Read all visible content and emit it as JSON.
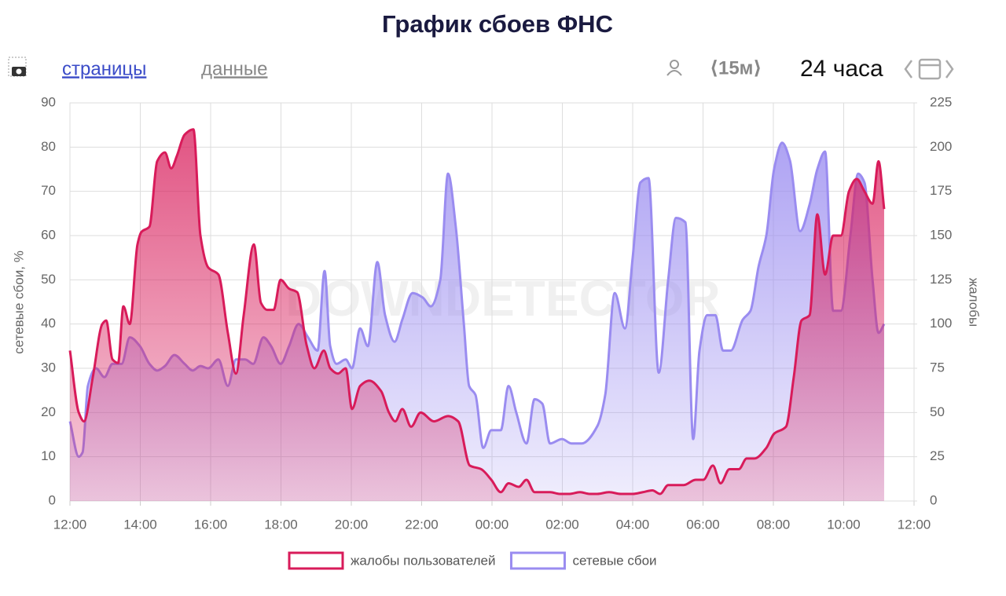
{
  "controls": {
    "tab_pages": "страницы",
    "tab_data": "данные",
    "interval": "⟨15м⟩",
    "period": "24 часа"
  },
  "chart_data": {
    "type": "area",
    "title": "График сбоев ФНС",
    "watermark": "DOWNDETECTOR",
    "ylabel": "сетевые сбои, %",
    "y2label": "жалобы",
    "xlim": [
      0,
      24
    ],
    "xticks": [
      {
        "value": 0,
        "label": "12:00"
      },
      {
        "value": 2,
        "label": "14:00"
      },
      {
        "value": 4,
        "label": "16:00"
      },
      {
        "value": 6,
        "label": "18:00"
      },
      {
        "value": 8,
        "label": "20:00"
      },
      {
        "value": 10,
        "label": "22:00"
      },
      {
        "value": 12,
        "label": "00:00"
      },
      {
        "value": 14,
        "label": "02:00"
      },
      {
        "value": 16,
        "label": "04:00"
      },
      {
        "value": 18,
        "label": "06:00"
      },
      {
        "value": 20,
        "label": "08:00"
      },
      {
        "value": 22,
        "label": "10:00"
      },
      {
        "value": 24,
        "label": "12:00"
      }
    ],
    "ylim": [
      0,
      90
    ],
    "yticks": [
      0,
      10,
      20,
      30,
      40,
      50,
      60,
      70,
      80,
      90
    ],
    "y2lim": [
      0,
      225
    ],
    "y2ticks": [
      0,
      25,
      50,
      75,
      100,
      125,
      150,
      175,
      200,
      225
    ],
    "grid": true,
    "series": [
      {
        "name": "жалобы пользователей",
        "color": "#d81b5a",
        "axis": "y2",
        "x": [
          0,
          0.25,
          0.4,
          0.65,
          0.92,
          1.03,
          1.21,
          1.37,
          1.52,
          1.7,
          1.92,
          2.03,
          2.26,
          2.48,
          2.7,
          2.88,
          3.04,
          3.26,
          3.51,
          3.71,
          3.93,
          4.22,
          4.49,
          4.72,
          4.94,
          5.23,
          5.43,
          5.61,
          5.79,
          5.99,
          6.23,
          6.46,
          6.73,
          6.95,
          7.22,
          7.4,
          7.62,
          7.84,
          8.02,
          8.25,
          8.51,
          8.85,
          9.07,
          9.25,
          9.45,
          9.7,
          9.97,
          10.35,
          10.75,
          11.04,
          11.37,
          11.69,
          11.98,
          12.25,
          12.47,
          12.76,
          12.98,
          13.21,
          13.65,
          13.92,
          14.21,
          14.5,
          14.77,
          14.99,
          15.33,
          15.66,
          16,
          16.29,
          16.56,
          16.78,
          17.01,
          17.45,
          17.79,
          18.01,
          18.28,
          18.5,
          18.75,
          19.02,
          19.24,
          19.46,
          19.8,
          20.02,
          20.36,
          20.58,
          20.8,
          21.03,
          21.25,
          21.47,
          21.7,
          21.92,
          22.15,
          22.37,
          22.59,
          22.82,
          22.99,
          23.15
        ],
        "values": [
          85,
          50,
          45,
          70,
          100,
          102,
          80,
          78,
          110,
          100,
          145,
          152,
          155,
          192,
          197,
          188,
          195,
          207,
          210,
          150,
          132,
          128,
          95,
          72,
          105,
          145,
          112,
          108,
          108,
          125,
          120,
          118,
          88,
          75,
          85,
          75,
          72,
          75,
          52,
          65,
          68,
          62,
          50,
          45,
          52,
          42,
          50,
          45,
          48,
          45,
          20,
          18,
          12,
          5,
          10,
          8,
          12,
          5,
          5,
          4,
          4,
          5,
          4,
          4,
          5,
          4,
          4,
          5,
          6,
          4,
          9,
          9,
          12,
          12,
          20,
          10,
          18,
          18,
          24,
          24,
          30,
          38,
          42,
          70,
          102,
          105,
          162,
          128,
          150,
          150,
          175,
          182,
          175,
          168,
          192,
          165
        ]
      },
      {
        "name": "сетевые сбои",
        "color": "#9a8cf0",
        "axis": "y",
        "x": [
          0,
          0.25,
          0.36,
          0.51,
          0.74,
          0.98,
          1.21,
          1.47,
          1.7,
          1.99,
          2.26,
          2.48,
          2.7,
          2.97,
          3.26,
          3.49,
          3.71,
          3.93,
          4.22,
          4.49,
          4.72,
          4.98,
          5.21,
          5.5,
          5.72,
          5.99,
          6.23,
          6.5,
          6.77,
          7.04,
          7.24,
          7.4,
          7.58,
          7.84,
          8.02,
          8.25,
          8.47,
          8.74,
          8.96,
          9.23,
          9.45,
          9.74,
          10.03,
          10.26,
          10.53,
          10.75,
          10.97,
          11.2,
          11.35,
          11.53,
          11.75,
          11.98,
          12.25,
          12.47,
          12.69,
          12.98,
          13.21,
          13.43,
          13.65,
          13.99,
          14.26,
          14.55,
          15,
          15.22,
          15.49,
          15.78,
          16,
          16.22,
          16.45,
          16.74,
          17.01,
          17.23,
          17.5,
          17.72,
          17.9,
          18.12,
          18.35,
          18.57,
          18.79,
          19.13,
          19.35,
          19.58,
          19.8,
          20.02,
          20.25,
          20.47,
          20.76,
          21.03,
          21.25,
          21.47,
          21.7,
          21.92,
          22.19,
          22.41,
          22.59,
          22.82,
          22.99,
          23.15
        ],
        "values": [
          18,
          10,
          11,
          26,
          30,
          28,
          31,
          31,
          37,
          35,
          31,
          29.5,
          30.5,
          33,
          31,
          29.5,
          30.5,
          30,
          32,
          26,
          32,
          32,
          31,
          37,
          35,
          31,
          35,
          40,
          37,
          34,
          52,
          35,
          31,
          32,
          30,
          39,
          35,
          54,
          42,
          36,
          41,
          47,
          46,
          44,
          50,
          74,
          62,
          40,
          26,
          24,
          12,
          16,
          16,
          26,
          20,
          13,
          23,
          22,
          13,
          14,
          13,
          13,
          17,
          24,
          47,
          39,
          55,
          72,
          73,
          29,
          50,
          64,
          63,
          14,
          34,
          42,
          42,
          34,
          34,
          41,
          43,
          53,
          60,
          75,
          81,
          77,
          61,
          67,
          75,
          79,
          43,
          43,
          60,
          74,
          72,
          50,
          38,
          40
        ]
      }
    ],
    "legend": "bottom"
  }
}
